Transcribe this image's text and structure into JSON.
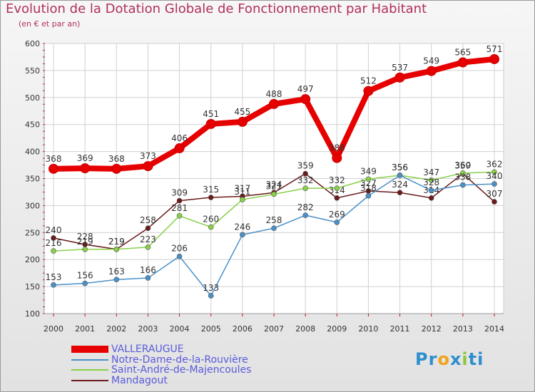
{
  "title": "Evolution de la Dotation Globale de Fonctionnement par Habitant",
  "subtitle": "(en € et par an)",
  "logo": {
    "parts": [
      "Pr",
      "o",
      "x",
      "i",
      "ti"
    ],
    "colors": [
      "#2e8fcc",
      "#f2a21c",
      "#2e8fcc",
      "#8cc63f",
      "#2e8fcc"
    ]
  },
  "colors": {
    "title": "#b0305a",
    "axis_text": "#333333",
    "tick": "#cc0000",
    "grid": "#d0d0d0",
    "legend_text": "#5a5adc"
  },
  "chart_data": {
    "type": "line",
    "title": "Evolution de la Dotation Globale de Fonctionnement par Habitant",
    "subtitle": "(en € et par an)",
    "xlabel": "",
    "ylabel": "",
    "ylim": [
      100,
      600
    ],
    "yticks": [
      100,
      150,
      200,
      250,
      300,
      350,
      400,
      450,
      500,
      550,
      600
    ],
    "grid": true,
    "legend_position": "bottom-left",
    "x": [
      2000,
      2001,
      2002,
      2003,
      2004,
      2005,
      2006,
      2007,
      2008,
      2009,
      2010,
      2011,
      2012,
      2013,
      2014
    ],
    "series": [
      {
        "name": "VALLERAUGUE",
        "color": "#e60000",
        "values": [
          368,
          369,
          368,
          373,
          406,
          451,
          455,
          488,
          497,
          388,
          512,
          537,
          549,
          565,
          571
        ]
      },
      {
        "name": "Notre-Dame-de-la-Rouvière",
        "color": "#4a90c8",
        "values": [
          153,
          156,
          163,
          166,
          206,
          133,
          246,
          258,
          282,
          269,
          318,
          356,
          328,
          338,
          340
        ]
      },
      {
        "name": "Saint-André-de-Majencoules",
        "color": "#88d048",
        "values": [
          216,
          219,
          219,
          223,
          281,
          260,
          311,
          321,
          332,
          332,
          349,
          356,
          347,
          360,
          362
        ]
      },
      {
        "name": "Mandagout",
        "color": "#6b1a1a",
        "values": [
          240,
          228,
          219,
          258,
          309,
          315,
          317,
          324,
          359,
          314,
          327,
          324,
          314,
          359,
          307
        ]
      }
    ]
  }
}
